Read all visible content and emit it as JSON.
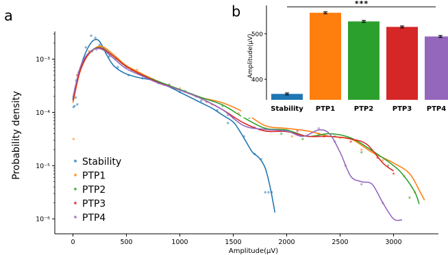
{
  "panels": {
    "a": "a",
    "b": "b"
  },
  "chart_data": [
    {
      "type": "scatter",
      "panel": "a",
      "xlabel": "Amplitude(μV)",
      "ylabel": "Probability density",
      "xlim": [
        -170,
        3420
      ],
      "ylim_log10": [
        -6.28,
        -2.48
      ],
      "yscale": "log",
      "xticks": [
        0,
        500,
        1000,
        1500,
        2000,
        2500,
        3000
      ],
      "yticks": [
        {
          "exp": -3,
          "label": "10⁻³"
        },
        {
          "exp": -4,
          "label": "10⁻⁴"
        },
        {
          "exp": -5,
          "label": "10⁻⁵"
        },
        {
          "exp": -6,
          "label": "10⁻⁶"
        }
      ],
      "legend": {
        "placement": "lower-left"
      },
      "series": [
        {
          "name": "Stability",
          "color": "#1f77b4",
          "curve": [
            [
              0,
              -3.75
            ],
            [
              50,
              -3.3
            ],
            [
              110,
              -2.92
            ],
            [
              170,
              -2.69
            ],
            [
              220,
              -2.63
            ],
            [
              260,
              -2.7
            ],
            [
              310,
              -2.9
            ],
            [
              380,
              -3.12
            ],
            [
              480,
              -3.26
            ],
            [
              600,
              -3.34
            ],
            [
              750,
              -3.4
            ],
            [
              900,
              -3.52
            ],
            [
              1000,
              -3.62
            ],
            [
              1100,
              -3.72
            ],
            [
              1200,
              -3.82
            ],
            [
              1300,
              -3.92
            ],
            [
              1400,
              -4.05
            ],
            [
              1500,
              -4.18
            ],
            [
              1560,
              -4.35
            ],
            [
              1620,
              -4.55
            ],
            [
              1680,
              -4.75
            ],
            [
              1740,
              -4.85
            ],
            [
              1800,
              -5.05
            ],
            [
              1850,
              -5.45
            ],
            [
              1890,
              -5.88
            ]
          ],
          "points": [
            [
              5,
              -3.9
            ],
            [
              15,
              -3.88
            ],
            [
              25,
              -3.72
            ],
            [
              40,
              -3.85
            ],
            [
              120,
              -2.78
            ],
            [
              170,
              -2.56
            ],
            [
              210,
              -2.6
            ],
            [
              250,
              -2.73
            ],
            [
              290,
              -2.82
            ],
            [
              340,
              -2.95
            ],
            [
              420,
              -3.15
            ],
            [
              520,
              -3.3
            ],
            [
              650,
              -3.36
            ],
            [
              800,
              -3.45
            ],
            [
              1000,
              -3.62
            ],
            [
              1200,
              -3.78
            ],
            [
              1350,
              -3.96
            ],
            [
              1450,
              -4.2
            ],
            [
              1600,
              -4.45
            ],
            [
              1700,
              -4.78
            ],
            [
              1760,
              -4.88
            ],
            [
              1800,
              -5.5
            ],
            [
              1830,
              -5.5
            ],
            [
              1860,
              -5.5
            ]
          ]
        },
        {
          "name": "PTP1",
          "color": "#ff7f0e",
          "curve": [
            [
              0,
              -3.82
            ],
            [
              60,
              -3.28
            ],
            [
              120,
              -2.99
            ],
            [
              180,
              -2.84
            ],
            [
              240,
              -2.76
            ],
            [
              300,
              -2.79
            ],
            [
              400,
              -2.95
            ],
            [
              500,
              -3.12
            ],
            [
              650,
              -3.28
            ],
            [
              800,
              -3.42
            ],
            [
              1000,
              -3.58
            ],
            [
              1200,
              -3.72
            ],
            [
              1400,
              -3.82
            ],
            [
              1600,
              -4.0
            ],
            [
              1800,
              -4.25
            ],
            [
              2000,
              -4.3
            ],
            [
              2200,
              -4.35
            ],
            [
              2400,
              -4.45
            ],
            [
              2600,
              -4.5
            ],
            [
              2800,
              -4.75
            ],
            [
              3000,
              -4.95
            ],
            [
              3150,
              -5.15
            ],
            [
              3250,
              -5.5
            ],
            [
              3290,
              -5.65
            ]
          ],
          "points": [
            [
              5,
              -4.5
            ],
            [
              50,
              -3.25
            ],
            [
              150,
              -2.85
            ],
            [
              300,
              -2.8
            ],
            [
              600,
              -3.2
            ],
            [
              1000,
              -3.55
            ],
            [
              1300,
              -3.85
            ],
            [
              1550,
              -4.02
            ],
            [
              1800,
              -4.3
            ],
            [
              2050,
              -4.45
            ],
            [
              2300,
              -4.4
            ],
            [
              2500,
              -4.48
            ],
            [
              2700,
              -4.7
            ],
            [
              2900,
              -4.9
            ],
            [
              3100,
              -5.2
            ],
            [
              3200,
              -5.5
            ]
          ]
        },
        {
          "name": "PTP2",
          "color": "#2ca02c",
          "curve": [
            [
              0,
              -3.72
            ],
            [
              60,
              -3.22
            ],
            [
              120,
              -2.96
            ],
            [
              180,
              -2.83
            ],
            [
              240,
              -2.78
            ],
            [
              300,
              -2.82
            ],
            [
              400,
              -2.98
            ],
            [
              500,
              -3.14
            ],
            [
              650,
              -3.3
            ],
            [
              800,
              -3.42
            ],
            [
              1000,
              -3.57
            ],
            [
              1200,
              -3.72
            ],
            [
              1400,
              -3.86
            ],
            [
              1600,
              -4.1
            ],
            [
              1800,
              -4.3
            ],
            [
              2000,
              -4.33
            ],
            [
              2200,
              -4.45
            ],
            [
              2400,
              -4.4
            ],
            [
              2600,
              -4.48
            ],
            [
              2800,
              -4.72
            ],
            [
              3000,
              -5.0
            ],
            [
              3100,
              -5.2
            ],
            [
              3200,
              -5.5
            ],
            [
              3240,
              -5.72
            ]
          ],
          "points": [
            [
              30,
              -3.4
            ],
            [
              180,
              -2.85
            ],
            [
              400,
              -3.0
            ],
            [
              750,
              -3.38
            ],
            [
              1050,
              -3.6
            ],
            [
              1400,
              -3.88
            ],
            [
              1650,
              -4.1
            ],
            [
              1950,
              -4.4
            ],
            [
              2150,
              -4.5
            ],
            [
              2450,
              -4.45
            ],
            [
              2700,
              -4.75
            ],
            [
              2950,
              -5.0
            ],
            [
              3150,
              -5.6
            ]
          ]
        },
        {
          "name": "PTP3",
          "color": "#d62728",
          "curve": [
            [
              0,
              -3.78
            ],
            [
              60,
              -3.26
            ],
            [
              120,
              -2.98
            ],
            [
              180,
              -2.84
            ],
            [
              240,
              -2.79
            ],
            [
              300,
              -2.83
            ],
            [
              400,
              -2.98
            ],
            [
              500,
              -3.14
            ],
            [
              650,
              -3.3
            ],
            [
              800,
              -3.44
            ],
            [
              1000,
              -3.58
            ],
            [
              1200,
              -3.74
            ],
            [
              1400,
              -3.95
            ],
            [
              1600,
              -4.2
            ],
            [
              1800,
              -4.35
            ],
            [
              2000,
              -4.36
            ],
            [
              2200,
              -4.45
            ],
            [
              2400,
              -4.45
            ],
            [
              2600,
              -4.5
            ],
            [
              2750,
              -4.6
            ],
            [
              2900,
              -4.95
            ],
            [
              3000,
              -5.1
            ]
          ],
          "points": [
            [
              40,
              -3.3
            ],
            [
              250,
              -2.78
            ],
            [
              550,
              -3.2
            ],
            [
              900,
              -3.48
            ],
            [
              1250,
              -3.8
            ],
            [
              1500,
              -4.1
            ],
            [
              1750,
              -4.32
            ],
            [
              2100,
              -4.35
            ],
            [
              2350,
              -4.45
            ],
            [
              2600,
              -4.55
            ],
            [
              2850,
              -4.85
            ],
            [
              3000,
              -5.15
            ]
          ]
        },
        {
          "name": "PTP4",
          "color": "#9467bd",
          "curve": [
            [
              0,
              -3.72
            ],
            [
              60,
              -3.2
            ],
            [
              120,
              -2.95
            ],
            [
              180,
              -2.83
            ],
            [
              240,
              -2.8
            ],
            [
              300,
              -2.85
            ],
            [
              400,
              -3.02
            ],
            [
              500,
              -3.18
            ],
            [
              650,
              -3.32
            ],
            [
              800,
              -3.45
            ],
            [
              1000,
              -3.58
            ],
            [
              1200,
              -3.74
            ],
            [
              1400,
              -3.95
            ],
            [
              1600,
              -4.25
            ],
            [
              1800,
              -4.32
            ],
            [
              2000,
              -4.35
            ],
            [
              2150,
              -4.45
            ],
            [
              2300,
              -4.33
            ],
            [
              2400,
              -4.4
            ],
            [
              2500,
              -4.75
            ],
            [
              2600,
              -5.2
            ],
            [
              2700,
              -5.3
            ],
            [
              2800,
              -5.35
            ],
            [
              2900,
              -5.7
            ],
            [
              3000,
              -6.0
            ],
            [
              3080,
              -6.02
            ]
          ],
          "points": [
            [
              20,
              -3.55
            ],
            [
              220,
              -2.82
            ],
            [
              500,
              -3.15
            ],
            [
              850,
              -3.48
            ],
            [
              1150,
              -3.7
            ],
            [
              1450,
              -4.05
            ],
            [
              1700,
              -4.28
            ],
            [
              2000,
              -4.35
            ],
            [
              2300,
              -4.3
            ],
            [
              2450,
              -4.55
            ],
            [
              2550,
              -5.0
            ],
            [
              2700,
              -5.35
            ],
            [
              2900,
              -5.7
            ]
          ]
        }
      ]
    },
    {
      "type": "bar",
      "panel": "b",
      "categories": [
        "Stability",
        "PTP1",
        "PTP2",
        "PTP3",
        "PTP4"
      ],
      "values": [
        368,
        546,
        527,
        515,
        494
      ],
      "errors": [
        2,
        2,
        2,
        2,
        2
      ],
      "colors": [
        "#1f77b4",
        "#ff7f0e",
        "#2ca02c",
        "#d62728",
        "#9467bd"
      ],
      "ylabel": "Amplitude(μV)",
      "ylim": [
        355,
        562
      ],
      "yticks": [
        400,
        500
      ],
      "significance": "***"
    }
  ]
}
